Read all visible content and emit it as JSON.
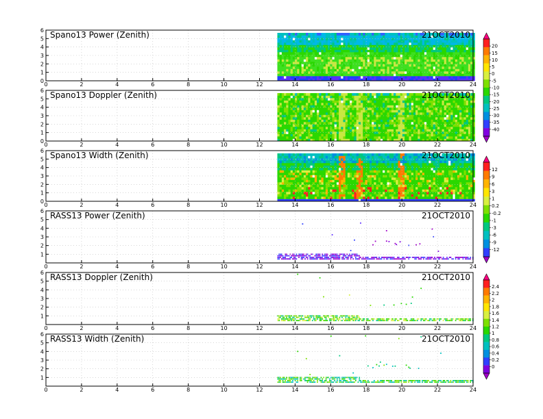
{
  "chart_data": [
    {
      "type": "heatmap",
      "title": "Spano13 Power (Zenith)",
      "date": "21OCT2010",
      "x_ticks": [
        0,
        2,
        4,
        6,
        8,
        10,
        12,
        14,
        16,
        18,
        20,
        22,
        24
      ],
      "y_ticks": [
        0,
        1,
        2,
        3,
        4,
        5,
        6
      ],
      "xlim": [
        0,
        24
      ],
      "ylim": [
        0,
        6
      ],
      "data_start_hour": 13
    },
    {
      "type": "heatmap",
      "title": "Spano13 Doppler (Zenith)",
      "date": "21OCT2010",
      "x_ticks": [
        0,
        2,
        4,
        6,
        8,
        10,
        12,
        14,
        16,
        18,
        20,
        22,
        24
      ],
      "y_ticks": [
        0,
        1,
        2,
        3,
        4,
        5,
        6
      ],
      "xlim": [
        0,
        24
      ],
      "ylim": [
        0,
        6
      ],
      "data_start_hour": 13
    },
    {
      "type": "heatmap",
      "title": "Spano13 Width (Zenith)",
      "date": "21OCT2010",
      "x_ticks": [
        0,
        2,
        4,
        6,
        8,
        10,
        12,
        14,
        16,
        18,
        20,
        22,
        24
      ],
      "y_ticks": [
        0,
        1,
        2,
        3,
        4,
        5,
        6
      ],
      "xlim": [
        0,
        24
      ],
      "ylim": [
        0,
        6
      ],
      "data_start_hour": 13
    },
    {
      "type": "scatter",
      "title": "RASS13 Power (Zenith)",
      "date": "21OCT2010",
      "x_ticks": [
        0,
        2,
        4,
        6,
        8,
        10,
        12,
        14,
        16,
        18,
        20,
        22,
        24
      ],
      "y_ticks": [
        1,
        2,
        3,
        4,
        5,
        6
      ],
      "xlim": [
        0,
        24
      ],
      "ylim": [
        0,
        6
      ],
      "data_start_hour": 13
    },
    {
      "type": "scatter",
      "title": "RASS13 Doppler (Zenith)",
      "date": "21OCT2010",
      "x_ticks": [
        0,
        2,
        4,
        6,
        8,
        10,
        12,
        14,
        16,
        18,
        20,
        22,
        24
      ],
      "y_ticks": [
        1,
        2,
        3,
        4,
        5,
        6
      ],
      "xlim": [
        0,
        24
      ],
      "ylim": [
        0,
        6
      ],
      "data_start_hour": 13
    },
    {
      "type": "scatter",
      "title": "RASS13 Width (Zenith)",
      "date": "21OCT2010",
      "x_ticks": [
        0,
        2,
        4,
        6,
        8,
        10,
        12,
        14,
        16,
        18,
        20,
        22,
        24
      ],
      "y_ticks": [
        1,
        2,
        3,
        4,
        5,
        6
      ],
      "xlim": [
        0,
        24
      ],
      "ylim": [
        0,
        6
      ],
      "data_start_hour": 13
    }
  ],
  "colorbars": [
    {
      "labels": [
        "20",
        "15",
        "10",
        "5",
        "0",
        "-5",
        "-10",
        "-15",
        "-20",
        "-25",
        "-30",
        "-35",
        "-40"
      ],
      "colors": [
        "#ff0080",
        "#ff2020",
        "#ff7a00",
        "#ffb400",
        "#ffe600",
        "#d8f040",
        "#7ee000",
        "#2ad800",
        "#00c880",
        "#00c0c0",
        "#0090e0",
        "#3040ff",
        "#8000e0",
        "#a000c8"
      ]
    },
    {
      "labels": [
        "12",
        "9",
        "6",
        "3",
        "1",
        "0.2",
        "-0.2",
        "-1",
        "-3",
        "-6",
        "-9",
        "-12"
      ],
      "colors": [
        "#ff0080",
        "#ff2020",
        "#ff7a00",
        "#ffb400",
        "#ffe600",
        "#d8f040",
        "#7ee000",
        "#2ad800",
        "#00c880",
        "#00c0c0",
        "#0090e0",
        "#3040ff",
        "#a000c8"
      ]
    },
    {
      "labels": [
        "2.4",
        "2.2",
        "2",
        "1.8",
        "1.6",
        "1.4",
        "1.2",
        "1",
        "0.8",
        "0.6",
        "0.4",
        "0.2",
        "0"
      ],
      "colors": [
        "#ff0080",
        "#ff2020",
        "#ff7a00",
        "#ffb400",
        "#ffe600",
        "#d8f040",
        "#7ee000",
        "#2ad800",
        "#00c880",
        "#00c0c0",
        "#0090e0",
        "#3040ff",
        "#8000e0",
        "#a000c8"
      ]
    }
  ]
}
